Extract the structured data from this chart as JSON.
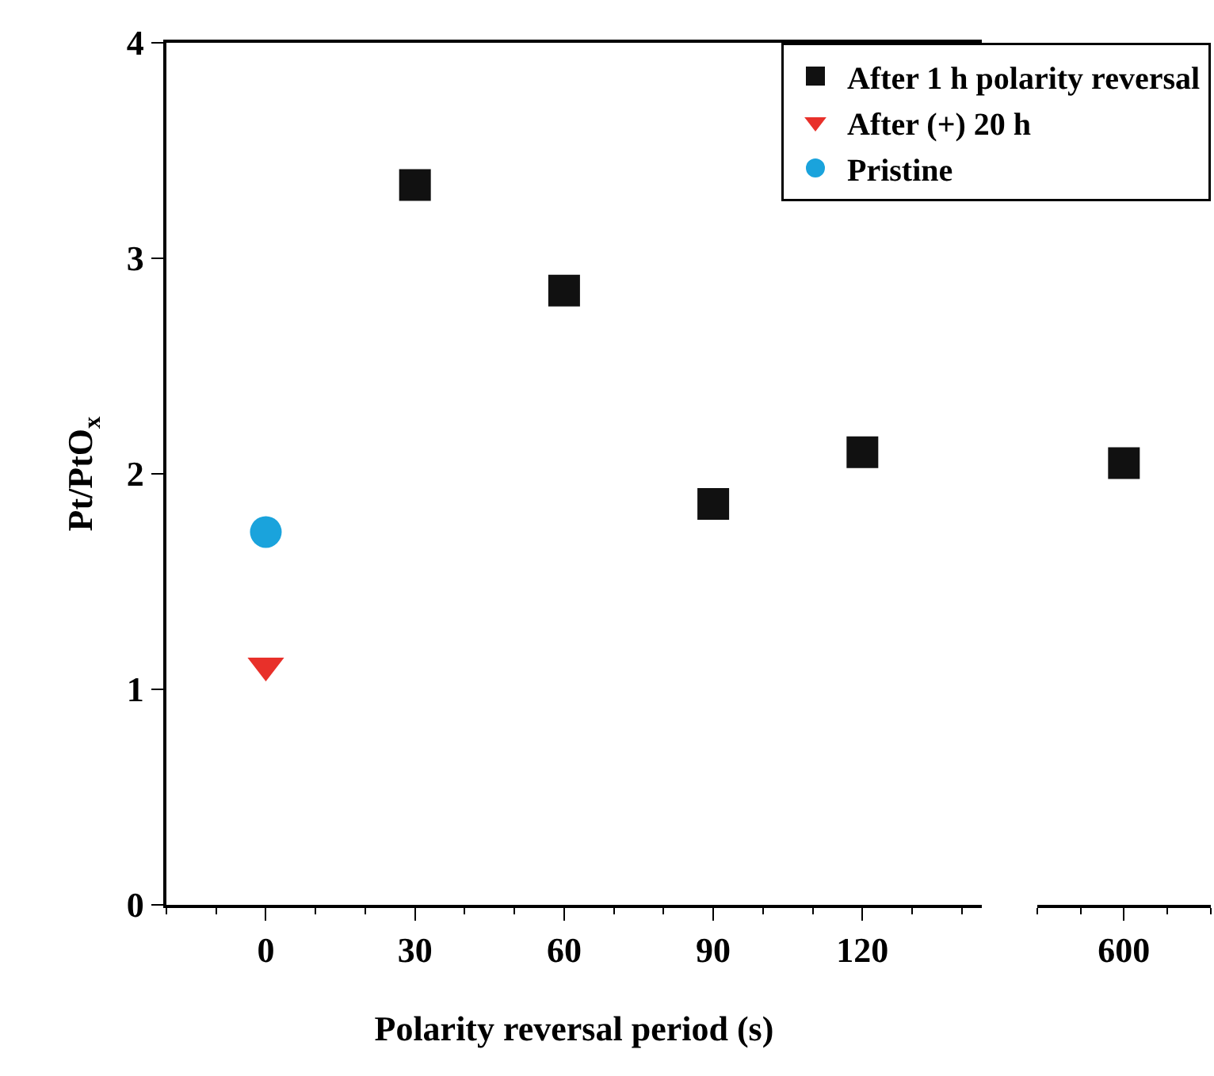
{
  "chart_data": [
    {
      "type": "scatter",
      "xlabel": "Polarity reversal period (s)",
      "ylabel": "Pt/PtO$_{x}$",
      "xlim": [
        -20,
        144
      ],
      "xticks": [
        0,
        30,
        60,
        90,
        120
      ],
      "ylim": [
        0,
        4
      ],
      "yticks": [
        0,
        1,
        2,
        3,
        4
      ],
      "legend": "top right",
      "series": [
        {
          "name": "After 1 h polarity reversal",
          "color": "#111111",
          "marker": "square",
          "x": [
            30,
            60,
            90,
            120
          ],
          "values": [
            3.34,
            2.85,
            1.86,
            2.1
          ]
        },
        {
          "name": "After (+) 20 h",
          "color": "#e8302a",
          "marker": "triangle",
          "x": [
            0
          ],
          "values": [
            1.11
          ]
        },
        {
          "name": "Pristine",
          "color": "#1aa3dc",
          "marker": "circle",
          "x": [
            0
          ],
          "values": [
            1.73
          ]
        }
      ]
    },
    {
      "type": "scatter",
      "categories": [
        "600"
      ],
      "ylim": [
        0,
        4
      ],
      "tick_labels": "x",
      "series": [
        {
          "color": "#111111",
          "marker": "square",
          "values": [
            2.05
          ]
        }
      ]
    }
  ]
}
